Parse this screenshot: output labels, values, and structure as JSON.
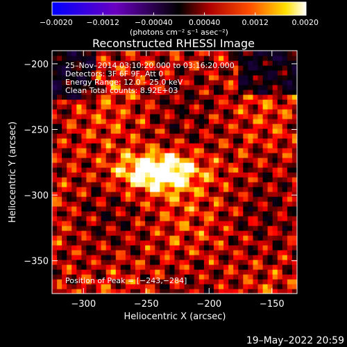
{
  "colorbar": {
    "ticks": [
      "−0.0020",
      "−0.0012",
      "−0.00040",
      "0.00040",
      "0.0012",
      "0.0020"
    ],
    "tick_values": [
      -0.002,
      -0.0012,
      -0.0004,
      0.0004,
      0.0012,
      0.002
    ],
    "range": [
      -0.002,
      0.002
    ],
    "units_label": "(photons cm⁻² s⁻¹ asec⁻²)"
  },
  "chart_data": {
    "type": "heatmap",
    "title": "Reconstructed RHESSI Image",
    "xlabel": "Heliocentric X (arcsec)",
    "ylabel": "Heliocentric Y (arcsec)",
    "xlim": [
      -325,
      -130
    ],
    "ylim": [
      -375,
      -190
    ],
    "xticks": [
      -300,
      -250,
      -200,
      -150
    ],
    "yticks": [
      -200,
      -250,
      -300,
      -350
    ],
    "x_tick_labels": [
      "−300",
      "−250",
      "−200",
      "−150"
    ],
    "y_tick_labels": [
      "−200",
      "−250",
      "−300",
      "−350"
    ],
    "annotations": [
      "25–Nov–2014 03:10:20.000 to 03:16:20.000",
      "Detectors: 3F 6F 9F, Att 0",
      "Energy Range: 12.0 – 25.0 keV",
      "Clean     Total counts: 8.92E+03"
    ],
    "peak_label": "Position of Peak = [−243,−284]",
    "peak": [
      -243,
      -284
    ],
    "colormap": "hot (blue-purple negative, red-yellow-white positive)"
  },
  "footer_date": "19–May–2022 20:59"
}
